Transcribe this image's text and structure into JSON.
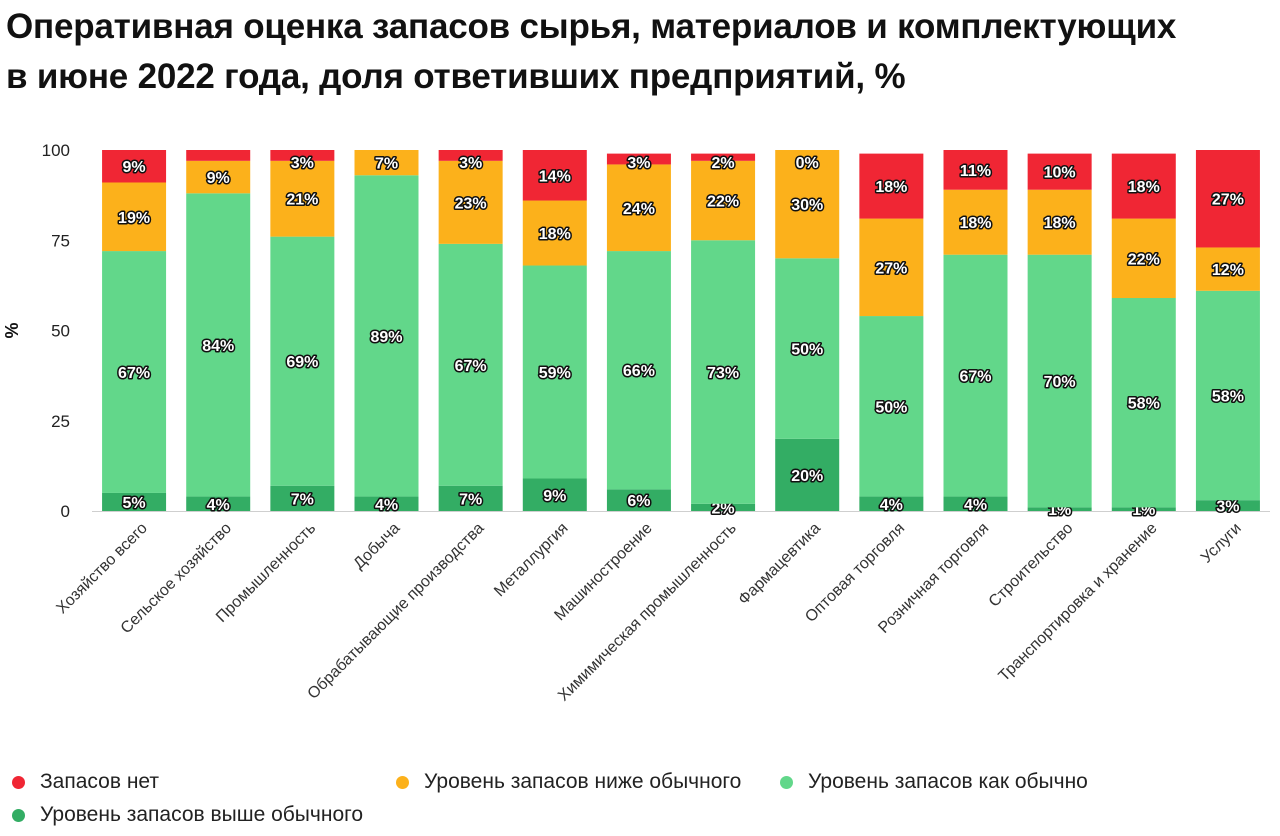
{
  "title_line1": "Оперативная оценка запасов сырья, материалов и комплектующих",
  "title_line2": "в июне 2022 года, доля ответивших предприятий, %",
  "chart_data": {
    "type": "bar",
    "stacked": true,
    "title": "Оперативная оценка запасов сырья, материалов и комплектующих в июне 2022 года, доля ответивших предприятий, %",
    "xlabel": "",
    "ylabel": "%",
    "ylim": [
      0,
      100
    ],
    "yticks": [
      0,
      25,
      50,
      75,
      100
    ],
    "legend_position": "bottom",
    "categories": [
      "Хозяйство всего",
      "Сельское хозяйство",
      "Промышленность",
      "Добыча",
      "Обрабатывающие производства",
      "Металлургия",
      "Машиностроение",
      "Химимическая промышленность",
      "Фармацевтика",
      "Оптовая торговля",
      "Розничная торговля",
      "Строительство",
      "Транспортировка и хранение",
      "Услуги"
    ],
    "series": [
      {
        "name": "Уровень запасов выше обычного",
        "color": "#33ad64",
        "values": [
          5,
          4,
          7,
          4,
          7,
          9,
          6,
          2,
          20,
          4,
          4,
          1,
          1,
          3
        ]
      },
      {
        "name": "Уровень запасов как обычно",
        "color": "#62d78a",
        "values": [
          67,
          84,
          69,
          89,
          67,
          59,
          66,
          73,
          50,
          50,
          67,
          70,
          58,
          58
        ]
      },
      {
        "name": "Уровень запасов ниже обычного",
        "color": "#fcb11b",
        "values": [
          19,
          9,
          21,
          7,
          23,
          18,
          24,
          22,
          30,
          27,
          18,
          18,
          22,
          12
        ]
      },
      {
        "name": "Запасов нет",
        "color": "#f02634",
        "values": [
          9,
          3,
          3,
          0,
          3,
          14,
          3,
          2,
          0,
          18,
          11,
          10,
          18,
          27
        ]
      }
    ],
    "data_labels": [
      [
        "5%",
        "4%",
        "7%",
        "4%",
        "7%",
        "9%",
        "6%",
        "2%",
        "20%",
        "4%",
        "4%",
        "1%",
        "1%",
        "3%"
      ],
      [
        "67%",
        "84%",
        "69%",
        "89%",
        "67%",
        "59%",
        "66%",
        "73%",
        "50%",
        "50%",
        "67%",
        "70%",
        "58%",
        "58%"
      ],
      [
        "19%",
        "9%",
        "21%",
        "7%",
        "23%",
        "18%",
        "24%",
        "22%",
        "30%",
        "27%",
        "18%",
        "18%",
        "22%",
        "12%"
      ],
      [
        "9%",
        null,
        "3%",
        null,
        "3%",
        "14%",
        "3%",
        "2%",
        "0%",
        "18%",
        "11%",
        "10%",
        "18%",
        "27%"
      ]
    ]
  },
  "legend": [
    {
      "label": "Запасов нет",
      "color": "#f02634"
    },
    {
      "label": "Уровень запасов ниже обычного",
      "color": "#fcb11b"
    },
    {
      "label": "Уровень запасов как обычно",
      "color": "#62d78a"
    },
    {
      "label": "Уровень запасов выше обычного",
      "color": "#33ad64"
    }
  ]
}
